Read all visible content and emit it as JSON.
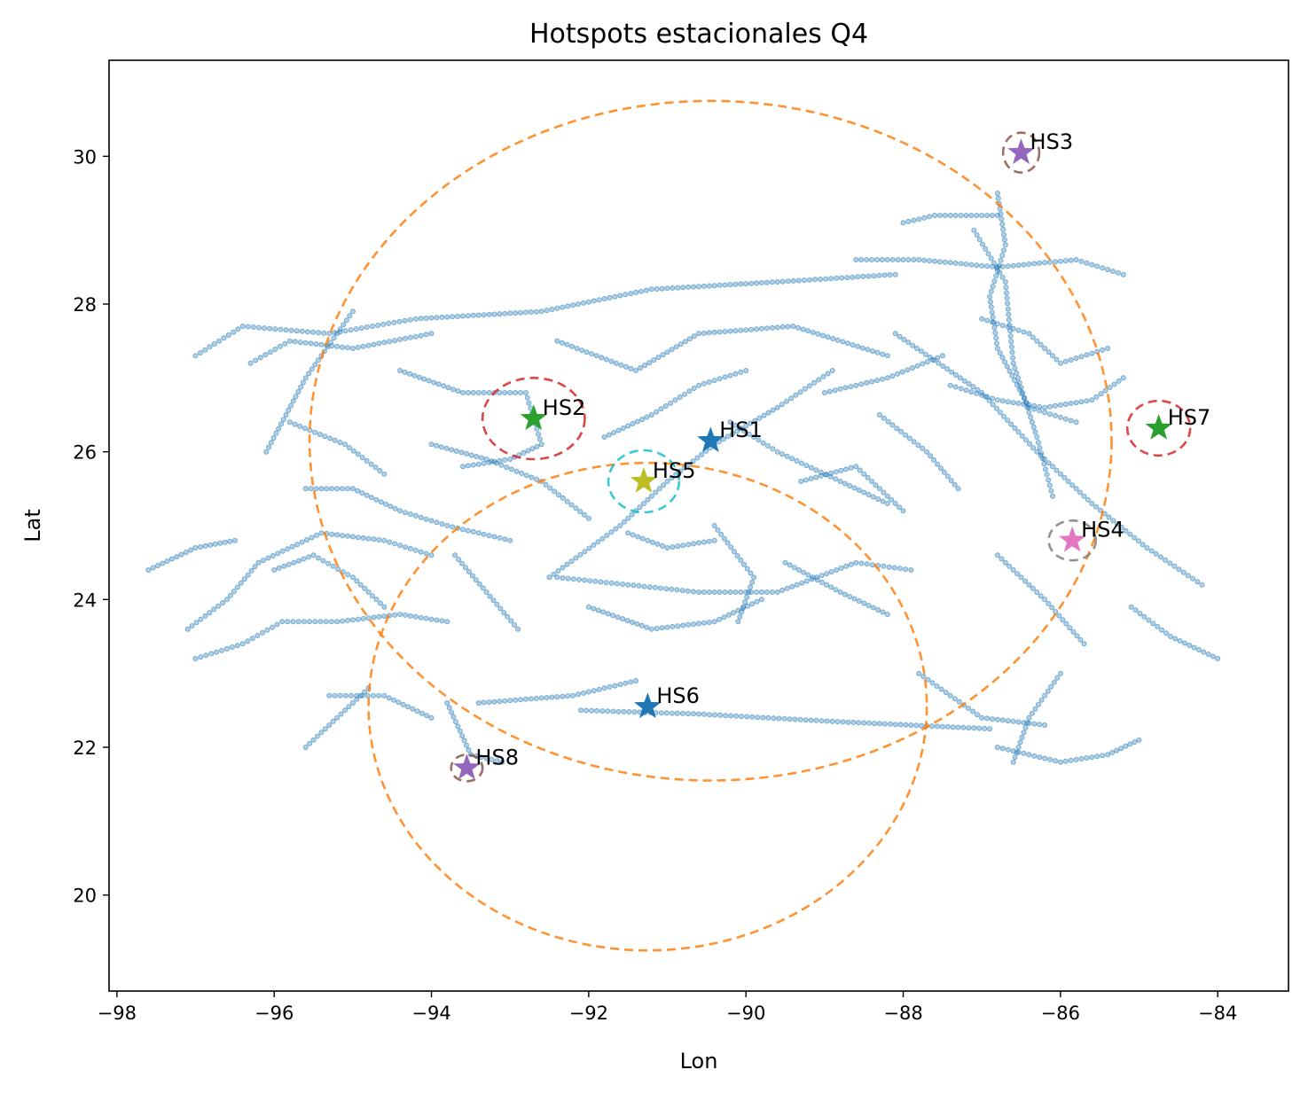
{
  "chart_data": {
    "type": "scatter",
    "title": "Hotspots estacionales Q4",
    "xlabel": "Lon",
    "ylabel": "Lat",
    "xlim": [
      -98.1,
      -83.1
    ],
    "ylim": [
      18.7,
      31.3
    ],
    "xticks": [
      -98,
      -96,
      -94,
      -92,
      -90,
      -88,
      -86,
      -84
    ],
    "yticks": [
      20,
      22,
      24,
      26,
      28,
      30
    ],
    "track_color": "#1f77b4",
    "tracks": [
      [
        [
          -96.1,
          26.0
        ],
        [
          -95.6,
          27.0
        ],
        [
          -95.0,
          27.9
        ]
      ],
      [
        [
          -97.0,
          27.3
        ],
        [
          -96.4,
          27.7
        ],
        [
          -95.3,
          27.6
        ],
        [
          -94.2,
          27.8
        ],
        [
          -92.6,
          27.9
        ],
        [
          -91.2,
          28.2
        ],
        [
          -89.6,
          28.3
        ],
        [
          -88.1,
          28.4
        ]
      ],
      [
        [
          -96.3,
          27.2
        ],
        [
          -95.8,
          27.5
        ],
        [
          -95.0,
          27.4
        ],
        [
          -94.0,
          27.6
        ]
      ],
      [
        [
          -92.4,
          27.5
        ],
        [
          -91.4,
          27.1
        ],
        [
          -90.6,
          27.6
        ],
        [
          -89.4,
          27.7
        ],
        [
          -88.2,
          27.3
        ]
      ],
      [
        [
          -92.5,
          24.3
        ],
        [
          -91.6,
          25.0
        ],
        [
          -91.0,
          25.6
        ],
        [
          -90.4,
          26.1
        ],
        [
          -89.6,
          26.6
        ],
        [
          -88.9,
          27.1
        ]
      ],
      [
        [
          -89.0,
          26.8
        ],
        [
          -88.2,
          27.0
        ],
        [
          -87.5,
          27.3
        ]
      ],
      [
        [
          -88.0,
          29.1
        ],
        [
          -87.6,
          29.2
        ],
        [
          -86.8,
          29.2
        ]
      ],
      [
        [
          -87.1,
          29.0
        ],
        [
          -86.7,
          28.3
        ],
        [
          -86.6,
          27.2
        ],
        [
          -86.3,
          26.2
        ],
        [
          -86.1,
          25.4
        ]
      ],
      [
        [
          -86.8,
          29.5
        ],
        [
          -86.7,
          28.8
        ],
        [
          -86.9,
          28.1
        ],
        [
          -86.8,
          27.4
        ],
        [
          -86.4,
          26.6
        ],
        [
          -85.8,
          26.4
        ]
      ],
      [
        [
          -88.1,
          27.6
        ],
        [
          -87.0,
          26.8
        ],
        [
          -86.3,
          26.0
        ],
        [
          -85.6,
          25.3
        ],
        [
          -84.9,
          24.7
        ],
        [
          -84.2,
          24.2
        ]
      ],
      [
        [
          -85.1,
          23.9
        ],
        [
          -84.6,
          23.5
        ],
        [
          -84.0,
          23.2
        ]
      ],
      [
        [
          -88.3,
          26.5
        ],
        [
          -87.7,
          26.0
        ],
        [
          -87.3,
          25.5
        ]
      ],
      [
        [
          -86.8,
          24.6
        ],
        [
          -86.2,
          24.0
        ],
        [
          -85.7,
          23.4
        ]
      ],
      [
        [
          -93.4,
          22.6
        ],
        [
          -92.2,
          22.7
        ],
        [
          -91.4,
          22.9
        ]
      ],
      [
        [
          -92.1,
          22.5
        ],
        [
          -90.6,
          22.45
        ],
        [
          -88.9,
          22.35
        ],
        [
          -86.9,
          22.25
        ]
      ],
      [
        [
          -95.3,
          22.7
        ],
        [
          -94.6,
          22.7
        ],
        [
          -94.0,
          22.4
        ]
      ],
      [
        [
          -93.8,
          22.6
        ],
        [
          -93.5,
          21.9
        ],
        [
          -93.1,
          21.8
        ]
      ],
      [
        [
          -97.1,
          23.6
        ],
        [
          -96.6,
          24.0
        ],
        [
          -96.2,
          24.5
        ],
        [
          -95.4,
          24.9
        ],
        [
          -94.6,
          24.8
        ],
        [
          -94.0,
          24.6
        ]
      ],
      [
        [
          -97.0,
          23.2
        ],
        [
          -96.4,
          23.4
        ],
        [
          -95.9,
          23.7
        ],
        [
          -95.2,
          23.7
        ],
        [
          -94.4,
          23.8
        ],
        [
          -93.8,
          23.7
        ]
      ],
      [
        [
          -95.6,
          25.5
        ],
        [
          -95.0,
          25.5
        ],
        [
          -94.4,
          25.2
        ],
        [
          -93.8,
          25.0
        ],
        [
          -93.0,
          24.8
        ]
      ],
      [
        [
          -94.4,
          27.1
        ],
        [
          -93.6,
          26.8
        ],
        [
          -92.8,
          26.8
        ],
        [
          -92.6,
          26.1
        ],
        [
          -93.0,
          25.9
        ],
        [
          -93.6,
          25.8
        ]
      ],
      [
        [
          -92.4,
          24.3
        ],
        [
          -91.5,
          24.2
        ],
        [
          -90.6,
          24.1
        ],
        [
          -89.6,
          24.1
        ],
        [
          -88.6,
          24.5
        ],
        [
          -87.9,
          24.4
        ]
      ],
      [
        [
          -89.5,
          24.5
        ],
        [
          -88.8,
          24.1
        ],
        [
          -88.2,
          23.8
        ]
      ],
      [
        [
          -92.0,
          23.9
        ],
        [
          -91.2,
          23.6
        ],
        [
          -90.4,
          23.7
        ],
        [
          -89.8,
          24.0
        ]
      ],
      [
        [
          -90.4,
          25.0
        ],
        [
          -89.9,
          24.3
        ],
        [
          -90.1,
          23.7
        ]
      ],
      [
        [
          -89.3,
          25.6
        ],
        [
          -88.6,
          25.8
        ],
        [
          -88.0,
          25.2
        ]
      ],
      [
        [
          -94.0,
          26.1
        ],
        [
          -93.3,
          25.9
        ],
        [
          -92.6,
          25.6
        ],
        [
          -92.0,
          25.1
        ]
      ],
      [
        [
          -96.0,
          24.4
        ],
        [
          -95.5,
          24.6
        ],
        [
          -95.0,
          24.3
        ],
        [
          -94.6,
          23.9
        ]
      ],
      [
        [
          -95.8,
          26.4
        ],
        [
          -95.1,
          26.1
        ],
        [
          -94.6,
          25.7
        ]
      ],
      [
        [
          -93.7,
          24.6
        ],
        [
          -93.3,
          24.1
        ],
        [
          -92.9,
          23.6
        ]
      ],
      [
        [
          -87.4,
          26.9
        ],
        [
          -86.8,
          26.7
        ],
        [
          -86.2,
          26.6
        ],
        [
          -85.6,
          26.7
        ],
        [
          -85.2,
          27.0
        ]
      ],
      [
        [
          -87.0,
          27.8
        ],
        [
          -86.4,
          27.6
        ],
        [
          -86.0,
          27.2
        ],
        [
          -85.4,
          27.4
        ]
      ],
      [
        [
          -88.6,
          28.6
        ],
        [
          -87.8,
          28.6
        ],
        [
          -86.8,
          28.5
        ],
        [
          -85.8,
          28.6
        ],
        [
          -85.2,
          28.4
        ]
      ],
      [
        [
          -97.6,
          24.4
        ],
        [
          -97.0,
          24.7
        ],
        [
          -96.5,
          24.8
        ]
      ],
      [
        [
          -95.6,
          22.0
        ],
        [
          -95.2,
          22.4
        ],
        [
          -94.8,
          22.8
        ]
      ],
      [
        [
          -87.8,
          23.0
        ],
        [
          -87.0,
          22.4
        ],
        [
          -86.2,
          22.3
        ]
      ],
      [
        [
          -86.8,
          22.0
        ],
        [
          -86.0,
          21.8
        ],
        [
          -85.4,
          21.9
        ],
        [
          -85.0,
          22.1
        ]
      ],
      [
        [
          -86.0,
          23.0
        ],
        [
          -86.4,
          22.4
        ],
        [
          -86.6,
          21.8
        ]
      ],
      [
        [
          -91.8,
          26.2
        ],
        [
          -91.2,
          26.5
        ],
        [
          -90.6,
          26.9
        ],
        [
          -90.0,
          27.1
        ]
      ],
      [
        [
          -90.2,
          26.4
        ],
        [
          -89.6,
          26.0
        ],
        [
          -88.8,
          25.6
        ],
        [
          -88.2,
          25.3
        ]
      ],
      [
        [
          -91.5,
          24.9
        ],
        [
          -91.0,
          24.7
        ],
        [
          -90.4,
          24.8
        ]
      ]
    ],
    "hotspots": [
      {
        "label": "HS1",
        "lon": -90.45,
        "lat": 26.15,
        "color": "#1f77b4"
      },
      {
        "label": "HS2",
        "lon": -92.7,
        "lat": 26.45,
        "color": "#2ca02c"
      },
      {
        "label": "HS3",
        "lon": -86.5,
        "lat": 30.05,
        "color": "#9467bd"
      },
      {
        "label": "HS4",
        "lon": -85.85,
        "lat": 24.8,
        "color": "#e377c2"
      },
      {
        "label": "HS5",
        "lon": -91.3,
        "lat": 25.6,
        "color": "#bcbd22"
      },
      {
        "label": "HS6",
        "lon": -91.25,
        "lat": 22.55,
        "color": "#1f77b4"
      },
      {
        "label": "HS7",
        "lon": -84.75,
        "lat": 26.32,
        "color": "#2ca02c"
      },
      {
        "label": "HS8",
        "lon": -93.55,
        "lat": 21.72,
        "color": "#9467bd"
      }
    ],
    "rings": [
      {
        "cx": -90.45,
        "cy": 26.15,
        "rx": 5.1,
        "ry": 4.6,
        "color": "#ff7f0e"
      },
      {
        "cx": -91.25,
        "cy": 22.55,
        "rx": 3.55,
        "ry": 3.3,
        "color": "#ff7f0e"
      },
      {
        "cx": -92.7,
        "cy": 26.45,
        "rx": 0.65,
        "ry": 0.55,
        "color": "#d62728"
      },
      {
        "cx": -86.5,
        "cy": 30.05,
        "rx": 0.23,
        "ry": 0.27,
        "color": "#8c564b"
      },
      {
        "cx": -85.85,
        "cy": 24.8,
        "rx": 0.3,
        "ry": 0.27,
        "color": "#7f7f7f"
      },
      {
        "cx": -91.3,
        "cy": 25.6,
        "rx": 0.45,
        "ry": 0.42,
        "color": "#17becf"
      },
      {
        "cx": -84.75,
        "cy": 26.32,
        "rx": 0.4,
        "ry": 0.37,
        "color": "#d62728"
      },
      {
        "cx": -93.55,
        "cy": 21.72,
        "rx": 0.2,
        "ry": 0.18,
        "color": "#8c564b"
      }
    ]
  }
}
